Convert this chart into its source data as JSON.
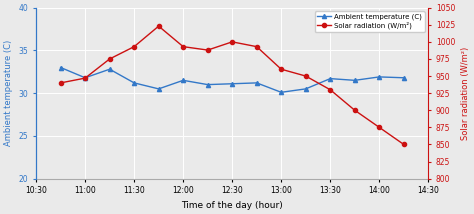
{
  "temp_x": [
    10.75,
    11.0,
    11.25,
    11.5,
    11.75,
    12.0,
    12.25,
    12.5,
    12.75,
    13.0,
    13.25,
    13.5,
    13.75,
    14.0,
    14.25
  ],
  "temp_y": [
    33.0,
    31.8,
    32.8,
    31.2,
    30.5,
    31.5,
    31.0,
    31.1,
    31.2,
    30.1,
    30.5,
    31.7,
    31.5,
    31.9,
    31.8
  ],
  "solar_x": [
    10.75,
    11.0,
    11.25,
    11.5,
    11.75,
    12.0,
    12.25,
    12.5,
    12.75,
    13.0,
    13.25,
    13.5,
    13.75,
    14.0,
    14.25
  ],
  "solar_y": [
    940,
    947,
    975,
    993,
    1023,
    993,
    988,
    1000,
    993,
    960,
    950,
    930,
    900,
    875,
    850
  ],
  "temp_color": "#3378c8",
  "solar_color": "#cc1111",
  "temp_label": "Ambient temperature (C)",
  "solar_label": "Solar radiation (W/m²)",
  "xlabel": "Time of the day (hour)",
  "ylabel_left": "Ambient temperature (C)",
  "ylabel_right": "Solar radiation (W/m²)",
  "xlim": [
    10.5,
    14.5
  ],
  "ylim_left": [
    20,
    40
  ],
  "ylim_right": [
    800,
    1050
  ],
  "yticks_left": [
    20,
    25,
    30,
    35,
    40
  ],
  "yticks_right": [
    800,
    825,
    850,
    875,
    900,
    925,
    950,
    975,
    1000,
    1025,
    1050
  ],
  "xticks": [
    10.5,
    11.0,
    11.5,
    12.0,
    12.5,
    13.0,
    13.5,
    14.0,
    14.5
  ],
  "xtick_labels": [
    "10:30",
    "11:00",
    "11:30",
    "12:00",
    "12:30",
    "13:00",
    "13:30",
    "14:00",
    "14:30"
  ],
  "bg_color": "#eaeaea",
  "grid_color": "#ffffff"
}
